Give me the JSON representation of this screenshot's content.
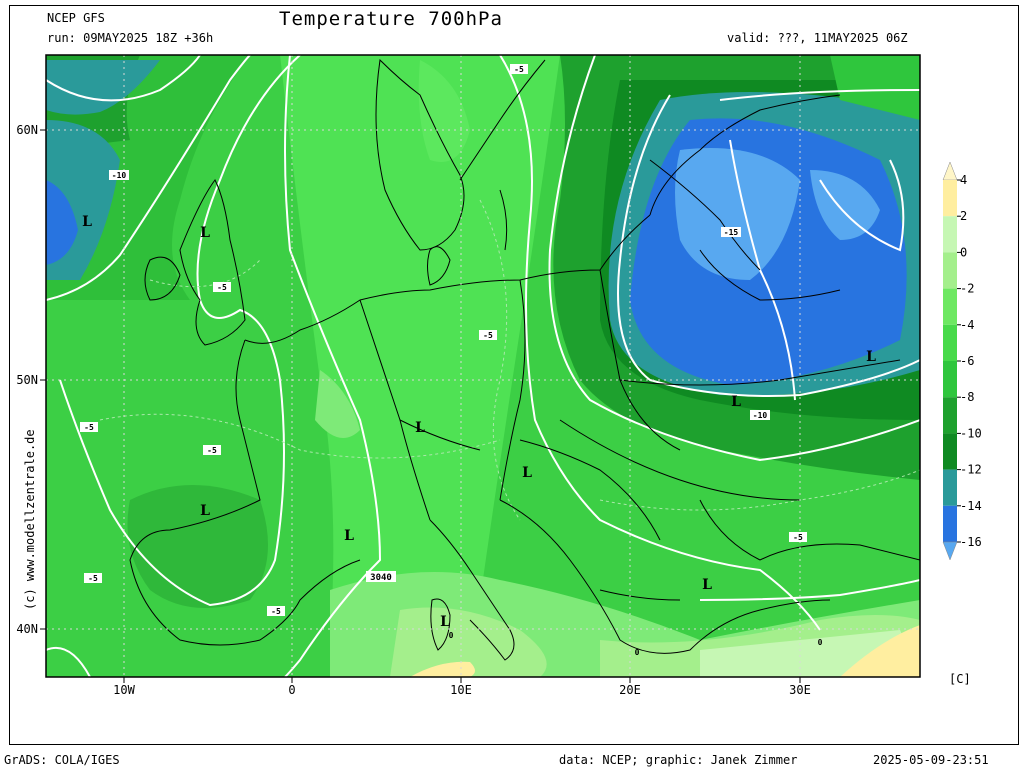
{
  "header": {
    "model": "NCEP GFS",
    "run": "run: 09MAY2025 18Z +36h",
    "title": "Temperature 700hPa",
    "valid": "valid: ???, 11MAY2025 06Z"
  },
  "map": {
    "lat_labels": [
      "60N",
      "50N",
      "40N"
    ],
    "lon_labels": [
      "10W",
      "0",
      "10E",
      "20E",
      "30E"
    ],
    "contour_labels": [
      "-5",
      "-10",
      "-5",
      "-5",
      "-5",
      "-5",
      "-5",
      "-15",
      "-10",
      "-5",
      "-5",
      "-5",
      "-5",
      "0",
      "0",
      "0",
      "3040"
    ],
    "low_markers": [
      "L",
      "L",
      "L",
      "L",
      "L",
      "L",
      "L",
      "L",
      "L",
      "L"
    ]
  },
  "legend": {
    "unit": "[C]",
    "levels": [
      "4",
      "2",
      "0",
      "-2",
      "-4",
      "-6",
      "-8",
      "-10",
      "-12",
      "-14",
      "-16"
    ],
    "colors": [
      "#fff6c8",
      "#ffeea0",
      "#c6f7b4",
      "#a4ef8c",
      "#6ee862",
      "#48da4a",
      "#2fc63d",
      "#1ea12e",
      "#0f8a22",
      "#2a9a9a",
      "#2874e0",
      "#58a8f0"
    ]
  },
  "watermark": "(c) www.modellzentrale.de",
  "footer": {
    "left": "GrADS: COLA/IGES",
    "middle": "data: NCEP; graphic: Janek Zimmer",
    "right": "2025-05-09-23:51"
  }
}
